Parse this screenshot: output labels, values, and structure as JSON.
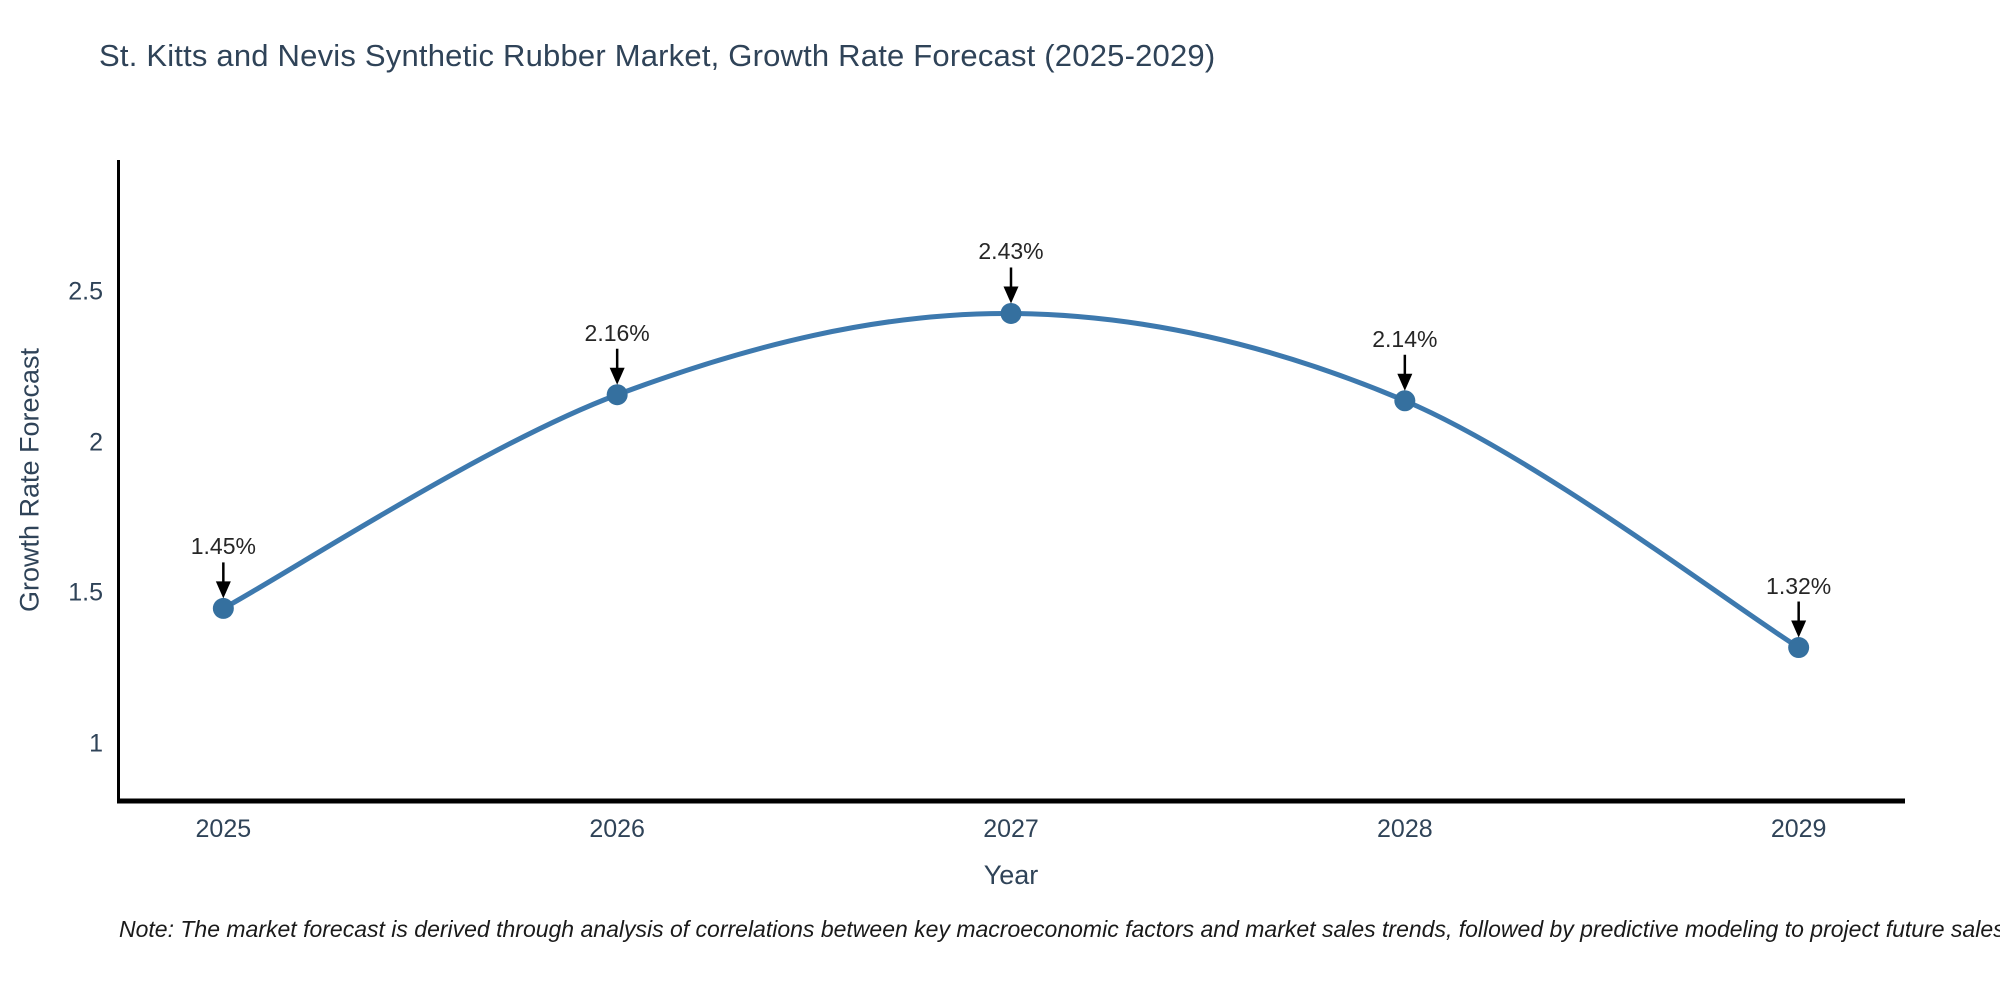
{
  "title": "St. Kitts and Nevis Synthetic Rubber Market, Growth Rate Forecast (2025-2029)",
  "note": "Note: The market forecast is derived through analysis of correlations between key macroeconomic factors and market sales trends, followed by predictive modeling to project future sales",
  "colors": {
    "background": "#ffffff",
    "title_text": "#2f4358",
    "axis_text": "#2f4358",
    "axis_line": "#000000",
    "line": "#3d79ae",
    "marker": "#35709f",
    "annotation_text": "#262626",
    "arrow": "#000000",
    "note_text": "#1a1a1a"
  },
  "chart_data": {
    "type": "line",
    "title": "St. Kitts and Nevis Synthetic Rubber Market, Growth Rate Forecast (2025-2029)",
    "xlabel": "Year",
    "ylabel": "Growth Rate Forecast",
    "x": [
      2025,
      2026,
      2027,
      2028,
      2029
    ],
    "y": [
      1.45,
      2.16,
      2.43,
      2.14,
      1.32
    ],
    "point_labels": [
      "1.45%",
      "2.16%",
      "2.43%",
      "2.14%",
      "1.32%"
    ],
    "xticks": [
      "2025",
      "2026",
      "2027",
      "2028",
      "2029"
    ],
    "xtick_values": [
      2025,
      2026,
      2027,
      2028,
      2029
    ],
    "yticks": [
      "1",
      "1.5",
      "2",
      "2.5"
    ],
    "ytick_values": [
      1,
      1.5,
      2,
      2.5
    ],
    "xlim": [
      2024.73,
      2029.27
    ],
    "ylim": [
      0.81,
      2.94
    ],
    "line_shape": "spline",
    "grid": false,
    "legend": "none",
    "annotations": "value labels with downward arrows above each point"
  }
}
